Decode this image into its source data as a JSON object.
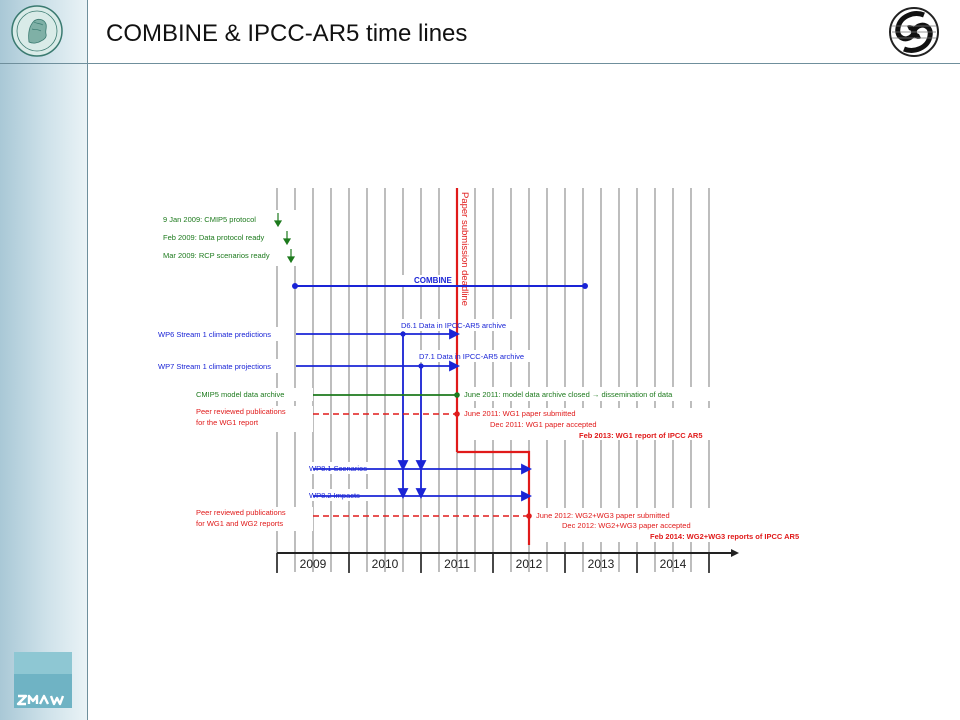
{
  "header": {
    "title": "COMBINE & IPCC-AR5 time lines"
  },
  "logos": {
    "left": "max-planck-seal",
    "right": "institute-logo",
    "bottom": "ZMAW"
  },
  "colors": {
    "blue": "#1a24d6",
    "green": "#1d7a1d",
    "red": "#e01a1a",
    "grid": "#9a9a9a"
  },
  "timeline": {
    "years": [
      "2009",
      "2010",
      "2011",
      "2012",
      "2013",
      "2014"
    ],
    "deadline_label": "Paper submission deadline",
    "combine_label": "COMBINE",
    "early_milestones": [
      "9 Jan 2009: CMIP5 protocol",
      "Feb 2009: Data protocol ready",
      "Mar 2009: RCP scenarios ready"
    ],
    "streams": {
      "wp6": "WP6 Stream 1 climate predictions",
      "wp7": "WP7 Stream 1 climate projections",
      "d61": "D6.1 Data in IPCC-AR5 archive",
      "d71": "D7.1 Data in IPCC-AR5 archive",
      "cmip5": "CMIP5 model data archive",
      "cmip5_closed": "June 2011: model data archive closed → dissemination of data",
      "wp81": "WP8.1 Scenarios",
      "wp82": "WP8.2 Impacts"
    },
    "wg1": {
      "left_line1": "Peer reviewed publications",
      "left_line2": "for the WG1 report",
      "submitted": "June 2011: WG1 paper submitted",
      "accepted": "Dec 2011: WG1 paper accepted",
      "report": "Feb 2013: WG1 report of IPCC AR5"
    },
    "wg23": {
      "left_line1": "Peer reviewed publications",
      "left_line2": "for WG1 and WG2 reports",
      "submitted": "June 2012: WG2+WG3 paper submitted",
      "accepted": "Dec 2012: WG2+WG3 paper accepted",
      "report": "Feb 2014: WG2+WG3 reports of IPCC AR5"
    }
  }
}
